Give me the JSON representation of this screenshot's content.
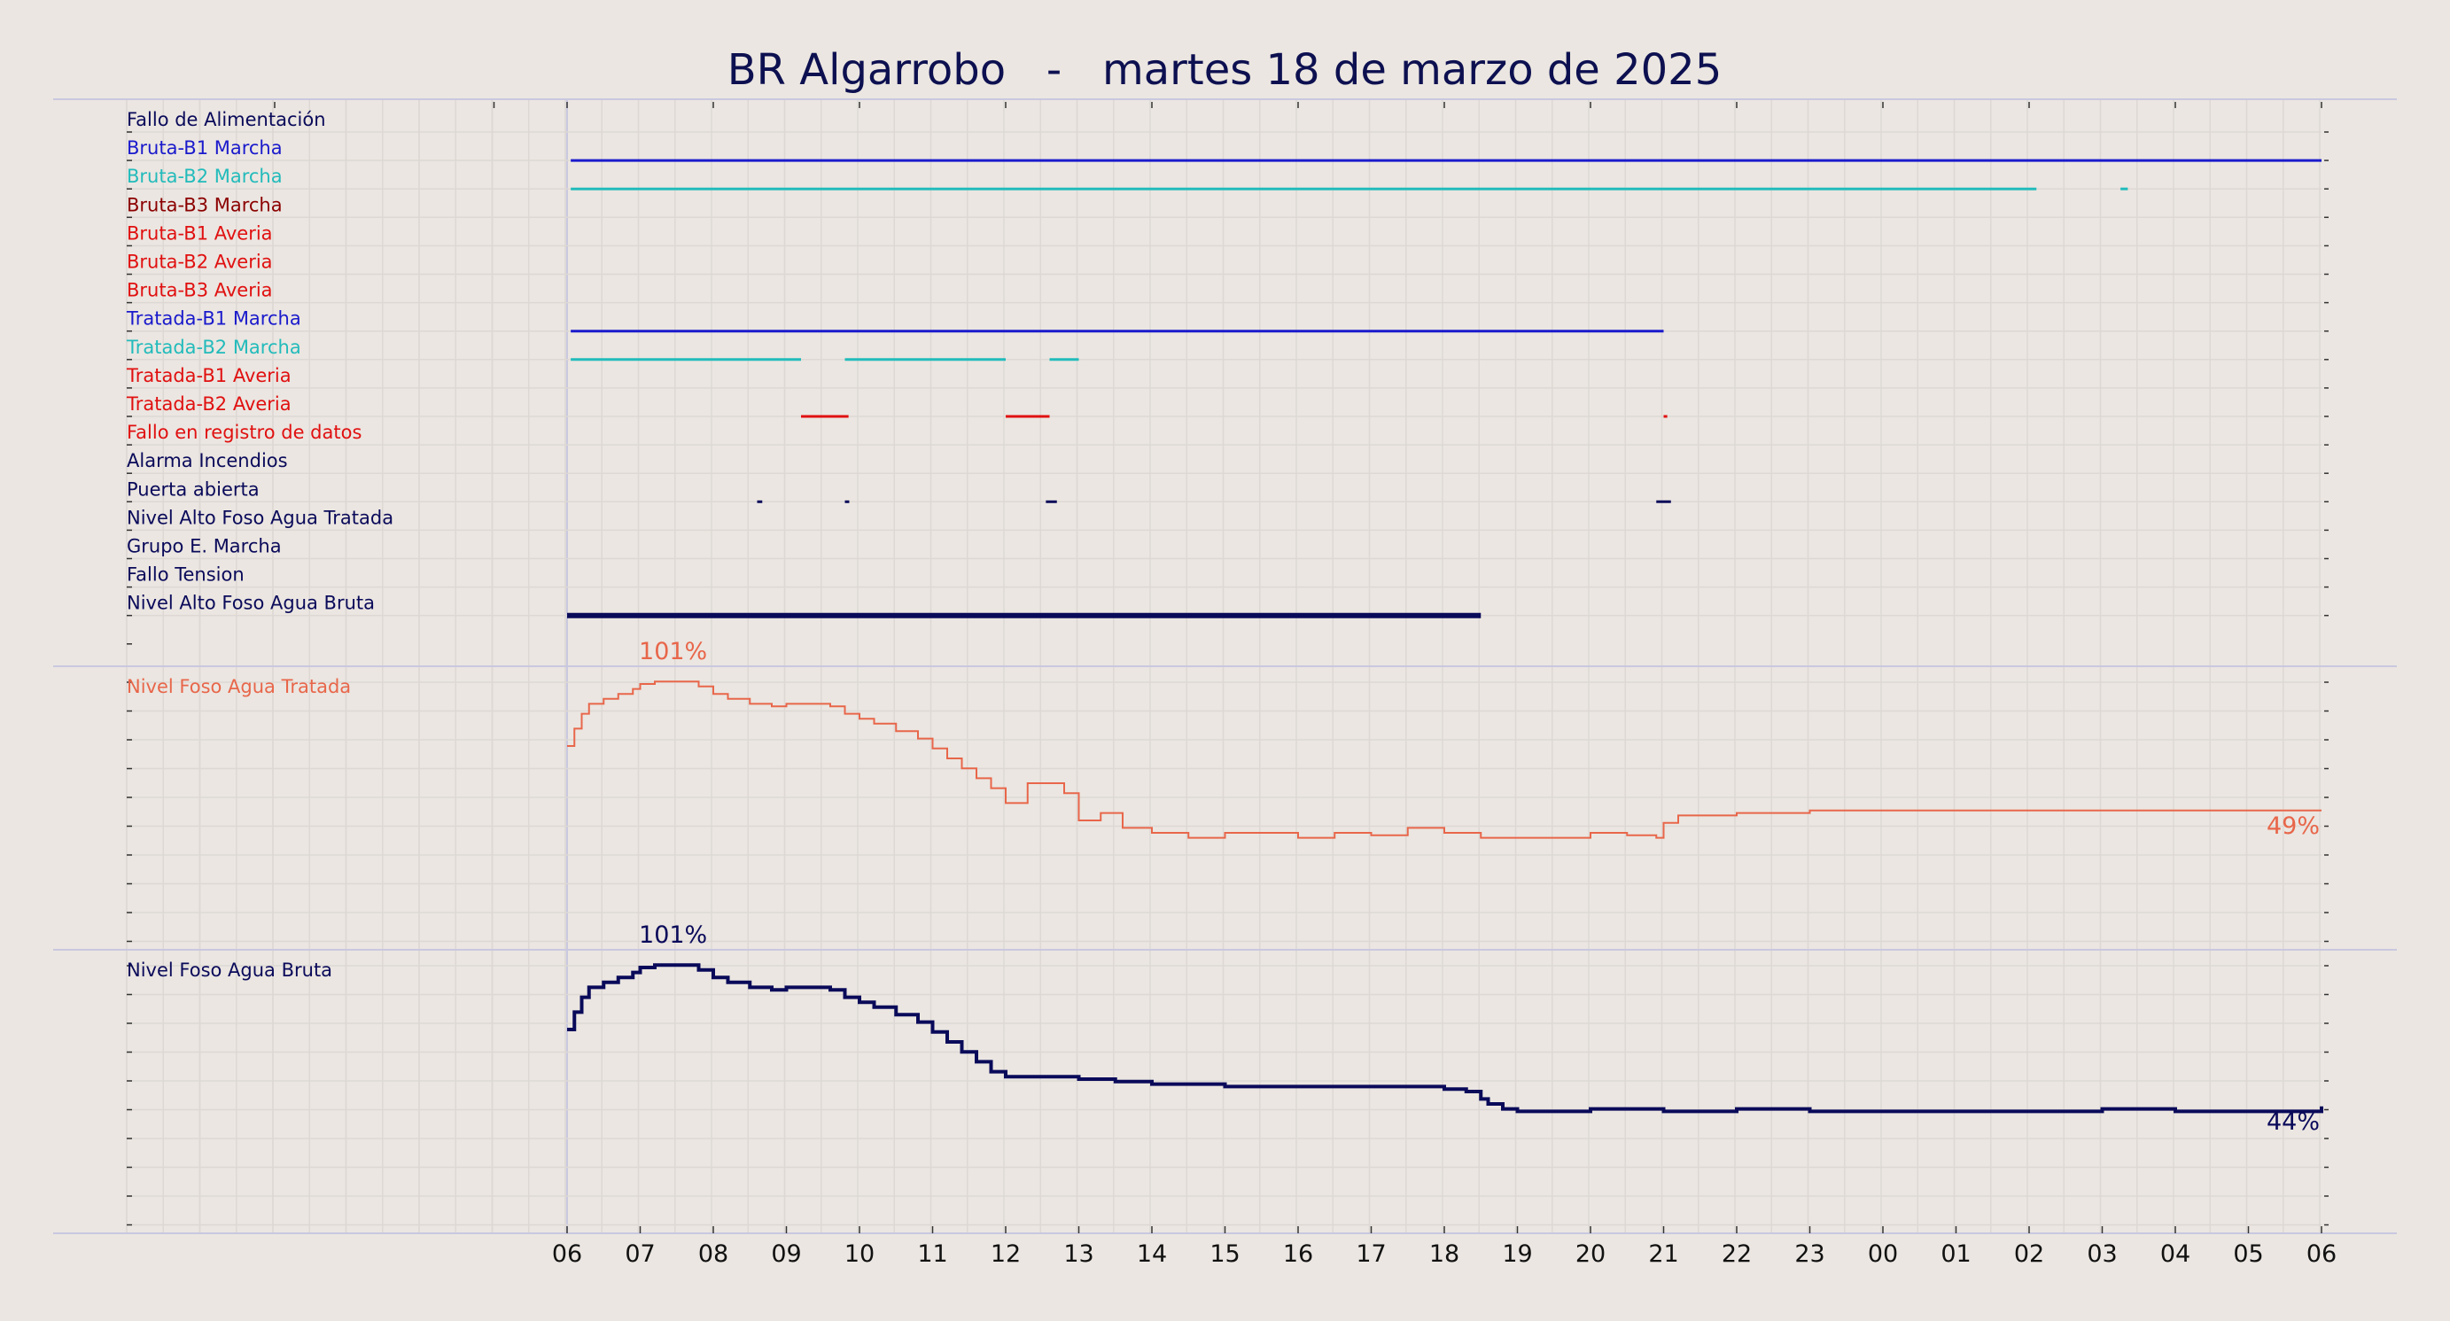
{
  "title": "BR Algarrobo   -   martes 18 de marzo de 2025",
  "chart_data": [
    {
      "type": "timeline",
      "panel": "digital-signals",
      "x_tick_labels": [
        "06",
        "07",
        "08",
        "09",
        "10",
        "11",
        "12",
        "13",
        "14",
        "15",
        "16",
        "17",
        "18",
        "19",
        "20",
        "21",
        "22",
        "23",
        "00",
        "01",
        "02",
        "03",
        "04",
        "05",
        "06"
      ],
      "x_range_hours": [
        0,
        24
      ],
      "signals": [
        {
          "name": "Fallo de Alimentación",
          "color": "#0a0a5a",
          "segments": []
        },
        {
          "name": "Bruta-B1 Marcha",
          "color": "#1a1acc",
          "segments": [
            [
              0.05,
              24.0
            ]
          ]
        },
        {
          "name": "Bruta-B2 Marcha",
          "color": "#22bbbb",
          "segments": [
            [
              0.05,
              20.1
            ],
            [
              21.25,
              21.35
            ]
          ]
        },
        {
          "name": "Bruta-B3 Marcha",
          "color": "#8b0000",
          "segments": []
        },
        {
          "name": "Bruta-B1 Averia",
          "color": "#e01010",
          "segments": []
        },
        {
          "name": "Bruta-B2 Averia",
          "color": "#e01010",
          "segments": []
        },
        {
          "name": "Bruta-B3 Averia",
          "color": "#e01010",
          "segments": []
        },
        {
          "name": "Tratada-B1 Marcha",
          "color": "#1a1acc",
          "segments": [
            [
              0.05,
              12.0
            ],
            [
              12.0,
              15.0
            ]
          ]
        },
        {
          "name": "Tratada-B2 Marcha",
          "color": "#22bbbb",
          "segments": [
            [
              0.05,
              3.2
            ],
            [
              3.8,
              6.0
            ],
            [
              6.6,
              7.0
            ]
          ]
        },
        {
          "name": "Tratada-B1 Averia",
          "color": "#e01010",
          "segments": []
        },
        {
          "name": "Tratada-B2 Averia",
          "color": "#e01010",
          "segments": [
            [
              3.2,
              3.85
            ],
            [
              6.0,
              6.6
            ],
            [
              15.0,
              15.05
            ]
          ]
        },
        {
          "name": "Fallo en registro de datos",
          "color": "#e01010",
          "segments": []
        },
        {
          "name": "Alarma Incendios",
          "color": "#0a0a5a",
          "segments": []
        },
        {
          "name": "Puerta abierta",
          "color": "#0a0a5a",
          "segments": [
            [
              2.6,
              2.67
            ],
            [
              3.8,
              3.86
            ],
            [
              6.55,
              6.7
            ],
            [
              14.9,
              15.1
            ]
          ]
        },
        {
          "name": "Nivel Alto Foso Agua Tratada",
          "color": "#0a0a5a",
          "segments": []
        },
        {
          "name": "Grupo E. Marcha",
          "color": "#0a0a5a",
          "segments": []
        },
        {
          "name": "Fallo Tension",
          "color": "#0a0a5a",
          "segments": []
        },
        {
          "name": "Nivel Alto Foso Agua Bruta",
          "color": "#0a0a5a",
          "segments": [
            [
              0.0,
              12.5
            ]
          ]
        }
      ]
    },
    {
      "type": "line",
      "panel": "nivel-tratada",
      "series_name": "Nivel Foso Agua Tratada",
      "color": "#e8664a",
      "ylim": [
        0,
        100
      ],
      "max_label": "101%",
      "end_label": "49%",
      "x": [
        0.0,
        0.1,
        0.2,
        0.3,
        0.5,
        0.7,
        0.9,
        1.0,
        1.2,
        1.5,
        1.8,
        2.0,
        2.2,
        2.5,
        2.8,
        3.0,
        3.3,
        3.6,
        3.8,
        4.0,
        4.2,
        4.5,
        4.8,
        5.0,
        5.2,
        5.4,
        5.6,
        5.8,
        6.0,
        6.1,
        6.3,
        6.6,
        6.8,
        7.0,
        7.3,
        7.6,
        8.0,
        8.5,
        9.0,
        9.5,
        10.0,
        10.5,
        11.0,
        11.5,
        12.0,
        12.5,
        13.0,
        13.5,
        14.0,
        14.5,
        14.9,
        15.0,
        15.2,
        16.0,
        17.0,
        18.0,
        19.0,
        20.0,
        21.0,
        22.0,
        23.0,
        24.0
      ],
      "y": [
        75,
        82,
        88,
        92,
        94,
        96,
        98,
        100,
        101,
        101,
        99,
        96,
        94,
        92,
        91,
        92,
        92,
        91,
        88,
        86,
        84,
        81,
        78,
        74,
        70,
        66,
        62,
        58,
        52,
        52,
        60,
        60,
        56,
        45,
        48,
        42,
        40,
        38,
        40,
        40,
        38,
        40,
        39,
        42,
        40,
        38,
        38,
        38,
        40,
        39,
        38,
        44,
        47,
        48,
        49,
        49,
        49,
        49,
        49,
        49,
        49,
        49
      ]
    },
    {
      "type": "line",
      "panel": "nivel-bruta",
      "series_name": "Nivel Foso Agua Bruta",
      "color": "#0a0a5a",
      "ylim": [
        0,
        100
      ],
      "max_label": "101%",
      "end_label": "44%",
      "x": [
        0.0,
        0.1,
        0.2,
        0.3,
        0.5,
        0.7,
        0.9,
        1.0,
        1.2,
        1.5,
        1.8,
        2.0,
        2.2,
        2.5,
        2.8,
        3.0,
        3.3,
        3.6,
        3.8,
        4.0,
        4.2,
        4.5,
        4.8,
        5.0,
        5.2,
        5.4,
        5.6,
        5.8,
        6.0,
        6.3,
        6.6,
        7.0,
        7.5,
        8.0,
        9.0,
        10.0,
        11.0,
        12.0,
        12.3,
        12.5,
        12.6,
        12.8,
        13.0,
        14.0,
        15.0,
        16.0,
        17.0,
        18.0,
        19.0,
        20.0,
        21.0,
        22.0,
        23.0,
        24.0
      ],
      "y": [
        75,
        82,
        88,
        92,
        94,
        96,
        98,
        100,
        101,
        101,
        99,
        96,
        94,
        92,
        91,
        92,
        92,
        91,
        88,
        86,
        84,
        81,
        78,
        74,
        70,
        66,
        62,
        58,
        56,
        56,
        56,
        55,
        54,
        53,
        52,
        52,
        52,
        51,
        50,
        47,
        45,
        43,
        42,
        43,
        42,
        43,
        42,
        42,
        42,
        42,
        43,
        42,
        42,
        44
      ]
    }
  ]
}
